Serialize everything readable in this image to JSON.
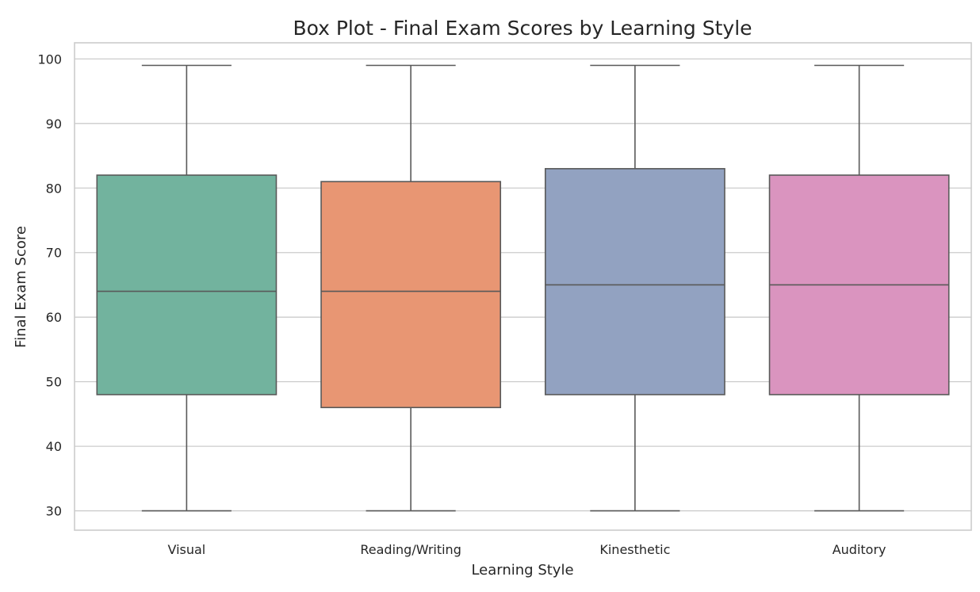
{
  "chart_data": {
    "type": "box",
    "title": "Box Plot - Final Exam Scores by Learning Style",
    "xlabel": "Learning Style",
    "ylabel": "Final Exam Score",
    "ylim": [
      27,
      102.5
    ],
    "yticks": [
      30,
      40,
      50,
      60,
      70,
      80,
      90,
      100
    ],
    "grid": true,
    "categories": [
      "Visual",
      "Reading/Writing",
      "Kinesthetic",
      "Auditory"
    ],
    "boxes": [
      {
        "category": "Visual",
        "min": 30,
        "q1": 48,
        "median": 64,
        "q3": 82,
        "max": 99,
        "color": "#72b39e"
      },
      {
        "category": "Reading/Writing",
        "min": 30,
        "q1": 46,
        "median": 64,
        "q3": 81,
        "max": 99,
        "color": "#e89673"
      },
      {
        "category": "Kinesthetic",
        "min": 30,
        "q1": 48,
        "median": 65,
        "q3": 83,
        "max": 99,
        "color": "#92a2c1"
      },
      {
        "category": "Auditory",
        "min": 30,
        "q1": 48,
        "median": 65,
        "q3": 82,
        "max": 99,
        "color": "#da94bf"
      }
    ]
  }
}
